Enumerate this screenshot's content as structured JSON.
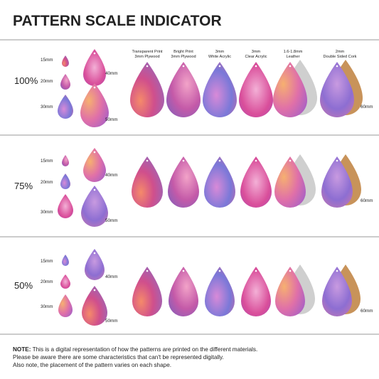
{
  "title": "PATTERN SCALE INDICATOR",
  "materials": [
    {
      "line1": "Transparent Print",
      "line2": "3mm Plywood"
    },
    {
      "line1": "Bright Print",
      "line2": "3mm Plywood"
    },
    {
      "line1": "3mm",
      "line2": "White Acrylic"
    },
    {
      "line1": "3mm",
      "line2": "Clear Acrylic"
    },
    {
      "line1": "1.6-1.8mm",
      "line2": "Leather"
    },
    {
      "line1": "2mm",
      "line2": "Double Sided Cork"
    }
  ],
  "rows": [
    {
      "scale": "100%",
      "sizes": [
        "15mm",
        "20mm",
        "30mm",
        "40mm",
        "50mm"
      ],
      "large": "60mm"
    },
    {
      "scale": "75%",
      "sizes": [
        "15mm",
        "20mm",
        "30mm",
        "40mm",
        "50mm"
      ],
      "large": "60mm"
    },
    {
      "scale": "50%",
      "sizes": [
        "15mm",
        "20mm",
        "30mm",
        "40mm",
        "50mm"
      ],
      "large": "60mm"
    }
  ],
  "note": {
    "label": "NOTE:",
    "lines": [
      "This is a digital representation of how the patterns are printed on the different materials.",
      "Please be aware there are some characteristics that can't be represented digitally.",
      "Also note, the placement of the pattern varies on each shape."
    ]
  }
}
